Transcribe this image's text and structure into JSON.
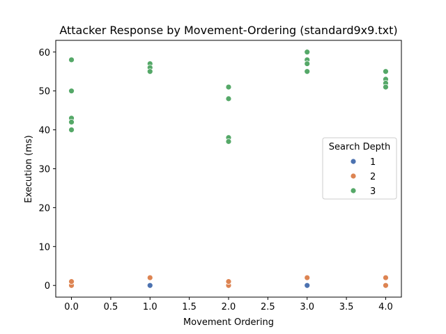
{
  "chart_data": {
    "type": "scatter",
    "title": "Attacker Response by Movement-Ordering (standard9x9.txt)",
    "xlabel": "Movement Ordering",
    "ylabel": "Execution (ms)",
    "xlim": [
      -0.2,
      4.2
    ],
    "ylim": [
      -3,
      63
    ],
    "xticks": [
      0.0,
      0.5,
      1.0,
      1.5,
      2.0,
      2.5,
      3.0,
      3.5,
      4.0
    ],
    "xtick_labels": [
      "0.0",
      "0.5",
      "1.0",
      "1.5",
      "2.0",
      "2.5",
      "3.0",
      "3.5",
      "4.0"
    ],
    "yticks": [
      0,
      10,
      20,
      30,
      40,
      50,
      60
    ],
    "ytick_labels": [
      "0",
      "10",
      "20",
      "30",
      "40",
      "50",
      "60"
    ],
    "grid": false,
    "legend": {
      "title": "Search Depth",
      "placement": "center-right"
    },
    "series": [
      {
        "name": "1",
        "color": "#4c72b0",
        "points": [
          [
            0,
            0
          ],
          [
            1,
            0
          ],
          [
            2,
            0
          ],
          [
            3,
            0
          ],
          [
            4,
            0
          ]
        ]
      },
      {
        "name": "2",
        "color": "#dd8452",
        "points": [
          [
            0,
            0
          ],
          [
            0,
            1
          ],
          [
            1,
            2
          ],
          [
            2,
            0
          ],
          [
            2,
            1
          ],
          [
            3,
            2
          ],
          [
            4,
            0
          ],
          [
            4,
            2
          ]
        ]
      },
      {
        "name": "3",
        "color": "#55a868",
        "points": [
          [
            0,
            58
          ],
          [
            0,
            50
          ],
          [
            0,
            43
          ],
          [
            0,
            42
          ],
          [
            0,
            40
          ],
          [
            1,
            57
          ],
          [
            1,
            56
          ],
          [
            1,
            55
          ],
          [
            2,
            51
          ],
          [
            2,
            48
          ],
          [
            2,
            38
          ],
          [
            2,
            37
          ],
          [
            3,
            60
          ],
          [
            3,
            58
          ],
          [
            3,
            57
          ],
          [
            3,
            55
          ],
          [
            4,
            55
          ],
          [
            4,
            53
          ],
          [
            4,
            52
          ],
          [
            4,
            51
          ]
        ]
      }
    ]
  }
}
